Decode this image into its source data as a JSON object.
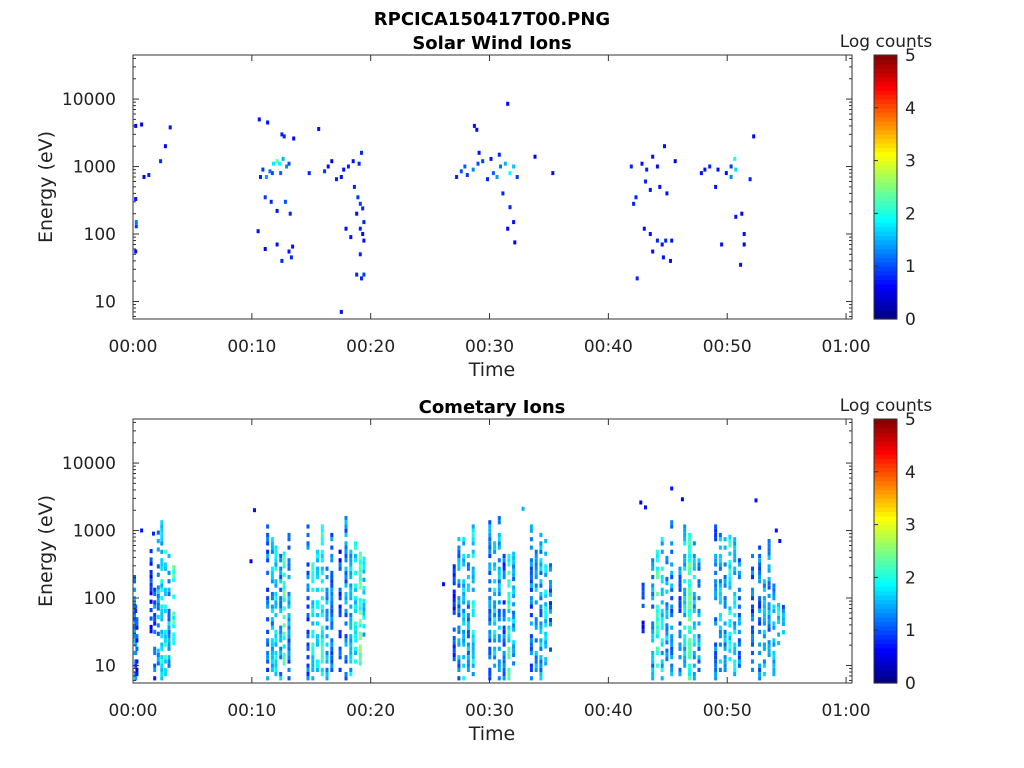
{
  "figure": {
    "title": "RPCICA150417T00.PNG"
  },
  "chart_data": [
    {
      "type": "heatmap",
      "title": "Solar Wind Ions",
      "xlabel": "Time",
      "ylabel": "Energy (eV)",
      "xlim_minutes": [
        0,
        60.5
      ],
      "x_tick_labels": [
        "00:00",
        "00:10",
        "00:20",
        "00:30",
        "00:40",
        "00:50",
        "01:00"
      ],
      "y_scale": "log",
      "ylim": [
        5.5,
        45000
      ],
      "y_tick_labels": [
        "10",
        "100",
        "1000",
        "10000"
      ],
      "colorbar": {
        "label": "Log counts",
        "range": [
          0,
          5
        ],
        "tick_labels": [
          "0",
          "1",
          "2",
          "3",
          "4",
          "5"
        ],
        "colormap": "jet"
      },
      "grid": false,
      "points": [
        [
          0.1,
          4000,
          0.6
        ],
        [
          0.1,
          330,
          0.7
        ],
        [
          0.15,
          150,
          1.2
        ],
        [
          0.15,
          130,
          0.9
        ],
        [
          0.1,
          55,
          0.7
        ],
        [
          0.6,
          4200,
          0.6
        ],
        [
          0.8,
          700,
          0.6
        ],
        [
          1.2,
          750,
          0.8
        ],
        [
          2.2,
          1200,
          0.8
        ],
        [
          2.6,
          2000,
          0.6
        ],
        [
          3.0,
          3800,
          0.7
        ],
        [
          10.5,
          5000,
          0.7
        ],
        [
          11.2,
          4500,
          0.7
        ],
        [
          12.4,
          3000,
          0.8
        ],
        [
          12.6,
          2800,
          0.8
        ],
        [
          13.4,
          2600,
          0.6
        ],
        [
          15.5,
          3600,
          0.7
        ],
        [
          10.8,
          900,
          0.9
        ],
        [
          11.1,
          700,
          1.4
        ],
        [
          11.4,
          850,
          1.2
        ],
        [
          11.7,
          1100,
          1.8
        ],
        [
          12.0,
          1200,
          2.3
        ],
        [
          12.2,
          1100,
          1.9
        ],
        [
          12.5,
          1300,
          1.5
        ],
        [
          12.8,
          1000,
          1.3
        ],
        [
          13.0,
          1100,
          1.0
        ],
        [
          11.6,
          800,
          1.0
        ],
        [
          12.3,
          800,
          1.1
        ],
        [
          10.6,
          700,
          0.8
        ],
        [
          11.0,
          350,
          0.9
        ],
        [
          11.5,
          300,
          0.8
        ],
        [
          12.7,
          300,
          1.0
        ],
        [
          13.1,
          200,
          0.8
        ],
        [
          12.0,
          220,
          0.7
        ],
        [
          10.4,
          110,
          0.7
        ],
        [
          11.0,
          60,
          0.6
        ],
        [
          12.0,
          70,
          0.7
        ],
        [
          12.4,
          40,
          0.8
        ],
        [
          13.2,
          45,
          0.8
        ],
        [
          13.3,
          65,
          0.7
        ],
        [
          13.0,
          55,
          0.7
        ],
        [
          14.7,
          800,
          0.8
        ],
        [
          16.0,
          850,
          0.9
        ],
        [
          16.3,
          1000,
          0.7
        ],
        [
          16.6,
          1200,
          0.6
        ],
        [
          17.0,
          650,
          0.8
        ],
        [
          17.6,
          900,
          0.7
        ],
        [
          18.0,
          1000,
          0.8
        ],
        [
          18.4,
          1200,
          0.7
        ],
        [
          18.9,
          1100,
          0.8
        ],
        [
          19.1,
          1600,
          0.8
        ],
        [
          17.4,
          700,
          0.7
        ],
        [
          18.5,
          500,
          0.8
        ],
        [
          18.8,
          350,
          0.9
        ],
        [
          19.0,
          280,
          0.9
        ],
        [
          19.2,
          240,
          0.8
        ],
        [
          18.7,
          200,
          0.7
        ],
        [
          19.3,
          150,
          0.8
        ],
        [
          19.0,
          120,
          0.8
        ],
        [
          17.8,
          120,
          0.7
        ],
        [
          18.2,
          90,
          0.7
        ],
        [
          19.2,
          100,
          0.7
        ],
        [
          19.3,
          80,
          0.7
        ],
        [
          19.0,
          50,
          0.8
        ],
        [
          18.7,
          25,
          0.8
        ],
        [
          19.3,
          25,
          0.9
        ],
        [
          19.1,
          22,
          0.8
        ],
        [
          17.4,
          7,
          0.7
        ],
        [
          27.1,
          700,
          0.8
        ],
        [
          27.5,
          850,
          1.0
        ],
        [
          27.8,
          1000,
          1.1
        ],
        [
          28.0,
          750,
          0.9
        ],
        [
          28.5,
          900,
          1.3
        ],
        [
          28.9,
          1100,
          1.0
        ],
        [
          29.3,
          1200,
          0.9
        ],
        [
          29.7,
          650,
          0.8
        ],
        [
          30.2,
          800,
          1.1
        ],
        [
          30.5,
          700,
          1.4
        ],
        [
          30.8,
          1000,
          1.2
        ],
        [
          31.2,
          1100,
          1.5
        ],
        [
          31.6,
          800,
          1.9
        ],
        [
          31.9,
          1000,
          1.6
        ],
        [
          32.2,
          700,
          0.9
        ],
        [
          33.7,
          1400,
          0.6
        ],
        [
          35.2,
          800,
          0.7
        ],
        [
          29.0,
          1600,
          0.7
        ],
        [
          30.0,
          1300,
          0.7
        ],
        [
          30.7,
          1500,
          0.8
        ],
        [
          28.6,
          4000,
          0.7
        ],
        [
          28.8,
          3500,
          0.7
        ],
        [
          31.4,
          8500,
          0.6
        ],
        [
          31.0,
          400,
          0.8
        ],
        [
          31.6,
          250,
          0.8
        ],
        [
          31.9,
          150,
          0.7
        ],
        [
          31.4,
          120,
          0.6
        ],
        [
          32.0,
          75,
          0.6
        ],
        [
          41.8,
          1000,
          0.8
        ],
        [
          42.7,
          1100,
          0.7
        ],
        [
          43.1,
          900,
          0.8
        ],
        [
          43.6,
          1400,
          0.7
        ],
        [
          44.0,
          1000,
          0.7
        ],
        [
          44.6,
          2000,
          0.7
        ],
        [
          45.5,
          1200,
          0.6
        ],
        [
          42.2,
          350,
          0.8
        ],
        [
          42.0,
          280,
          0.8
        ],
        [
          43.0,
          600,
          0.8
        ],
        [
          43.4,
          450,
          0.7
        ],
        [
          44.2,
          500,
          0.7
        ],
        [
          44.8,
          400,
          0.7
        ],
        [
          42.9,
          120,
          0.7
        ],
        [
          43.4,
          100,
          0.7
        ],
        [
          44.0,
          80,
          0.8
        ],
        [
          44.4,
          70,
          0.7
        ],
        [
          44.7,
          80,
          0.8
        ],
        [
          45.2,
          80,
          0.7
        ],
        [
          43.6,
          55,
          0.7
        ],
        [
          44.5,
          45,
          0.7
        ],
        [
          45.1,
          40,
          0.7
        ],
        [
          42.3,
          22,
          0.8
        ],
        [
          47.7,
          800,
          0.7
        ],
        [
          48.0,
          900,
          0.7
        ],
        [
          48.4,
          1000,
          0.8
        ],
        [
          48.9,
          500,
          0.7
        ],
        [
          49.1,
          900,
          0.7
        ],
        [
          49.8,
          800,
          0.7
        ],
        [
          50.2,
          1000,
          0.9
        ],
        [
          50.5,
          1300,
          2.0
        ],
        [
          50.6,
          900,
          1.7
        ],
        [
          50.2,
          700,
          1.3
        ],
        [
          51.8,
          650,
          0.8
        ],
        [
          52.1,
          2800,
          0.6
        ],
        [
          50.6,
          180,
          0.7
        ],
        [
          51.1,
          200,
          0.6
        ],
        [
          51.3,
          100,
          0.7
        ],
        [
          49.4,
          70,
          0.7
        ],
        [
          51.3,
          70,
          0.6
        ],
        [
          51.0,
          35,
          0.7
        ]
      ]
    },
    {
      "type": "heatmap",
      "title": "Cometary Ions",
      "xlabel": "Time",
      "ylabel": "Energy (eV)",
      "xlim_minutes": [
        0,
        60.5
      ],
      "x_tick_labels": [
        "00:00",
        "00:10",
        "00:20",
        "00:30",
        "00:40",
        "00:50",
        "01:00"
      ],
      "y_scale": "log",
      "ylim": [
        5.5,
        45000
      ],
      "y_tick_labels": [
        "10",
        "100",
        "1000",
        "10000"
      ],
      "colorbar": {
        "label": "Log counts",
        "range": [
          0,
          5
        ],
        "tick_labels": [
          "0",
          "1",
          "2",
          "3",
          "4",
          "5"
        ],
        "colormap": "jet"
      },
      "grid": false,
      "columns": [
        [
          0.0,
          6,
          200,
          1.3
        ],
        [
          0.1,
          6,
          70,
          1.1
        ],
        [
          0.2,
          6,
          45,
          0.8
        ],
        [
          1.4,
          30,
          600,
          0.7
        ],
        [
          1.7,
          6,
          150,
          1.0
        ],
        [
          2.0,
          10,
          900,
          1.3
        ],
        [
          2.3,
          6,
          1400,
          1.6
        ],
        [
          2.6,
          6,
          500,
          1.8
        ],
        [
          2.9,
          8,
          400,
          1.3
        ],
        [
          3.3,
          20,
          350,
          2.0
        ],
        [
          11.2,
          6,
          1200,
          1.1
        ],
        [
          11.6,
          8,
          800,
          1.4
        ],
        [
          11.9,
          6,
          600,
          1.6
        ],
        [
          12.3,
          6,
          400,
          1.3
        ],
        [
          12.6,
          10,
          500,
          2.0
        ],
        [
          13.0,
          6,
          900,
          1.2
        ],
        [
          14.6,
          6,
          1200,
          1.0
        ],
        [
          15.0,
          6,
          300,
          1.7
        ],
        [
          15.4,
          8,
          500,
          1.5
        ],
        [
          15.8,
          6,
          1100,
          1.8
        ],
        [
          16.2,
          6,
          300,
          1.3
        ],
        [
          16.6,
          8,
          900,
          1.1
        ],
        [
          17.3,
          8,
          500,
          0.8
        ],
        [
          17.8,
          6,
          1500,
          1.2
        ],
        [
          18.2,
          6,
          600,
          1.5
        ],
        [
          18.6,
          8,
          700,
          1.7
        ],
        [
          19.0,
          10,
          500,
          2.2
        ],
        [
          19.3,
          15,
          400,
          1.6
        ],
        [
          26.9,
          10,
          300,
          0.8
        ],
        [
          27.3,
          6,
          800,
          1.2
        ],
        [
          27.7,
          6,
          1400,
          1.5
        ],
        [
          28.1,
          8,
          400,
          1.3
        ],
        [
          28.5,
          6,
          1100,
          1.6
        ],
        [
          29.9,
          6,
          1300,
          1.2
        ],
        [
          30.3,
          8,
          700,
          1.5
        ],
        [
          30.7,
          6,
          1600,
          1.3
        ],
        [
          31.1,
          6,
          450,
          1.0
        ],
        [
          31.5,
          6,
          400,
          1.9
        ],
        [
          31.9,
          10,
          700,
          1.4
        ],
        [
          33.4,
          6,
          1200,
          1.1
        ],
        [
          33.8,
          8,
          600,
          1.4
        ],
        [
          34.2,
          6,
          900,
          1.3
        ],
        [
          34.6,
          10,
          700,
          1.6
        ],
        [
          35.0,
          12,
          400,
          1.1
        ],
        [
          42.8,
          30,
          250,
          0.7
        ],
        [
          43.6,
          6,
          350,
          1.3
        ],
        [
          44.0,
          8,
          500,
          2.0
        ],
        [
          44.4,
          6,
          800,
          1.6
        ],
        [
          44.8,
          10,
          400,
          1.4
        ],
        [
          45.2,
          6,
          1300,
          1.2
        ],
        [
          45.9,
          6,
          300,
          1.1
        ],
        [
          46.3,
          8,
          1100,
          1.6
        ],
        [
          46.7,
          6,
          900,
          2.1
        ],
        [
          47.1,
          6,
          800,
          1.5
        ],
        [
          47.5,
          8,
          350,
          1.3
        ],
        [
          48.9,
          6,
          1200,
          1.1
        ],
        [
          49.3,
          8,
          900,
          1.4
        ],
        [
          49.7,
          6,
          700,
          1.3
        ],
        [
          50.1,
          10,
          900,
          1.8
        ],
        [
          50.5,
          6,
          800,
          1.5
        ],
        [
          50.9,
          8,
          500,
          1.2
        ],
        [
          52.0,
          6,
          400,
          1.0
        ],
        [
          52.6,
          6,
          600,
          1.1
        ],
        [
          53.0,
          6,
          200,
          1.3
        ],
        [
          53.4,
          10,
          800,
          1.2
        ],
        [
          53.8,
          6,
          150,
          1.4
        ],
        [
          54.2,
          20,
          80,
          1.6
        ],
        [
          54.6,
          25,
          90,
          1.2
        ]
      ],
      "points": [
        [
          0.6,
          1000,
          0.7
        ],
        [
          1.6,
          900,
          0.8
        ],
        [
          10.1,
          2000,
          0.7
        ],
        [
          9.8,
          350,
          0.6
        ],
        [
          26.0,
          160,
          0.7
        ],
        [
          32.7,
          2100,
          1.5
        ],
        [
          42.6,
          2600,
          0.6
        ],
        [
          43.0,
          2200,
          0.7
        ],
        [
          45.2,
          4200,
          0.7
        ],
        [
          46.1,
          2900,
          0.6
        ],
        [
          52.3,
          2800,
          0.7
        ],
        [
          54.0,
          1000,
          0.7
        ],
        [
          54.3,
          700,
          0.7
        ]
      ]
    }
  ]
}
